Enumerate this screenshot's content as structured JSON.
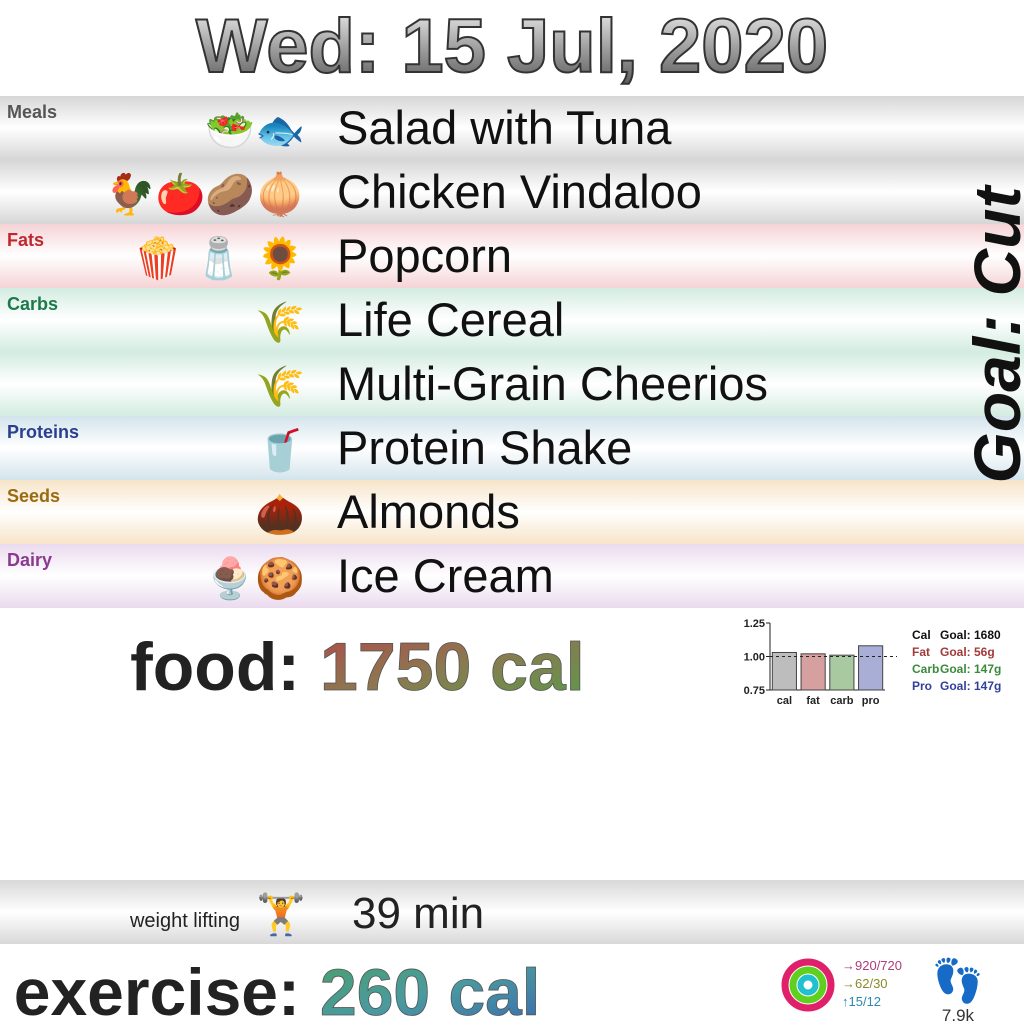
{
  "header": {
    "title": "Wed: 15 Jul, 2020"
  },
  "goal": "Goal: Cut",
  "sections": [
    {
      "label": "Meals",
      "band_color": "#d6d6d6",
      "label_color": "#555555",
      "items": [
        {
          "icons": "🥗🐟",
          "name": "Salad with Tuna"
        },
        {
          "icons": "🐓🍅🥔🧅",
          "name": "Chicken Vindaloo"
        }
      ]
    },
    {
      "label": "Fats",
      "band_color": "#f5d3d6",
      "label_color": "#c0282f",
      "items": [
        {
          "icons": "🍿 🧂 🌻",
          "name": "Popcorn"
        }
      ]
    },
    {
      "label": "Carbs",
      "band_color": "#d3ece1",
      "label_color": "#1b7a4a",
      "items": [
        {
          "icons": "🌾",
          "name": "Life Cereal"
        },
        {
          "icons": "🌾",
          "name": "Multi-Grain Cheerios"
        }
      ]
    },
    {
      "label": "Proteins",
      "band_color": "#d3e4ec",
      "label_color": "#2a3f8f",
      "items": [
        {
          "icons": "🥤",
          "name": "Protein Shake"
        }
      ]
    },
    {
      "label": "Seeds",
      "band_color": "#f7e4c8",
      "label_color": "#9a6a10",
      "items": [
        {
          "icons": "🌰",
          "name": "Almonds"
        }
      ]
    },
    {
      "label": "Dairy",
      "band_color": "#eadaee",
      "label_color": "#8a3a8f",
      "items": [
        {
          "icons": "🍨🍪",
          "name": "Ice Cream"
        }
      ]
    }
  ],
  "food_total": {
    "label": "food:",
    "value": "1750 cal"
  },
  "chart_data": {
    "type": "bar",
    "categories": [
      "cal",
      "fat",
      "carb",
      "pro"
    ],
    "values": [
      1.03,
      1.02,
      1.01,
      1.08
    ],
    "colors": [
      "#bdbdbd",
      "#d7a0a0",
      "#a9c9a0",
      "#a9aed6"
    ],
    "ylim": [
      0.75,
      1.25
    ],
    "yticks": [
      0.75,
      {
        "value": 1,
        "label": "1.00"
      },
      1.25
    ],
    "reference_line": 1,
    "legend": [
      {
        "name": "Cal",
        "goal": "Goal: 1680",
        "color": "#111111"
      },
      {
        "name": "Fat",
        "goal": "Goal: 56g",
        "color": "#a33a3a"
      },
      {
        "name": "Carb",
        "goal": "Goal: 147g",
        "color": "#3a8a3a"
      },
      {
        "name": "Pro",
        "goal": "Goal: 147g",
        "color": "#33409a"
      }
    ]
  },
  "exercise": {
    "activity": "weight lifting",
    "icon": "🏋️",
    "duration": "39 min"
  },
  "exercise_total": {
    "label": "exercise:",
    "value": "260 cal"
  },
  "activity_rings": [
    "→920/720",
    "→62/30",
    "↑15/12"
  ],
  "steps": {
    "icon": "👣",
    "value": "7.9k"
  }
}
